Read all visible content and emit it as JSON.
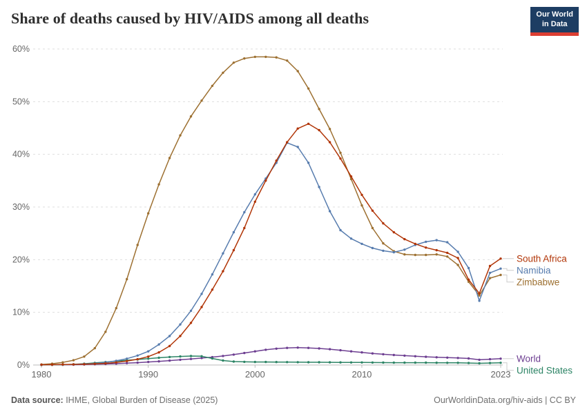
{
  "header": {
    "logo": {
      "line1": "Our World",
      "line2": "in Data",
      "bg_color": "#1d3d63",
      "accent_color": "#dc3e32"
    }
  },
  "footer": {
    "source_label": "Data source:",
    "source_text": " IHME, Global Burden of Disease (2025)",
    "right_text": "OurWorldinData.org/hiv-aids | CC BY"
  },
  "chart_data": {
    "type": "line",
    "title": "Share of deaths caused by HIV/AIDS among all deaths",
    "grid": true,
    "legend_position": "right-of-line-ends",
    "ylim": [
      0,
      60
    ],
    "y_ticks": [
      0,
      10,
      20,
      30,
      40,
      50,
      60
    ],
    "y_tick_labels": [
      "0%",
      "10%",
      "20%",
      "30%",
      "40%",
      "50%",
      "60%"
    ],
    "x_ticks": [
      1980,
      1990,
      2000,
      2010,
      2023
    ],
    "x_tick_labels": [
      "1980",
      "1990",
      "2000",
      "2010",
      "2023"
    ],
    "years": [
      1980,
      1981,
      1982,
      1983,
      1984,
      1985,
      1986,
      1987,
      1988,
      1989,
      1990,
      1991,
      1992,
      1993,
      1994,
      1995,
      1996,
      1997,
      1998,
      1999,
      2000,
      2001,
      2002,
      2003,
      2004,
      2005,
      2006,
      2007,
      2008,
      2009,
      2010,
      2011,
      2012,
      2013,
      2014,
      2015,
      2016,
      2017,
      2018,
      2019,
      2020,
      2021,
      2022,
      2023
    ],
    "series": [
      {
        "name": "South Africa",
        "color": "#B13507",
        "values": [
          0.05,
          0.07,
          0.09,
          0.12,
          0.16,
          0.22,
          0.32,
          0.5,
          0.75,
          1.1,
          1.6,
          2.4,
          3.6,
          5.5,
          8,
          11,
          14.3,
          17.8,
          21.8,
          26,
          31,
          35,
          38.8,
          42.3,
          44.9,
          45.8,
          44.6,
          42.3,
          39.2,
          35.8,
          32.3,
          29.3,
          26.9,
          25.2,
          23.9,
          23,
          22.3,
          21.8,
          21.3,
          20.3,
          16.2,
          13.6,
          18.8,
          20.2
        ]
      },
      {
        "name": "Namibia",
        "color": "#577CAE",
        "values": [
          0.03,
          0.05,
          0.08,
          0.12,
          0.2,
          0.3,
          0.5,
          0.8,
          1.2,
          1.8,
          2.6,
          3.9,
          5.5,
          7.7,
          10.3,
          13.5,
          17.2,
          21.2,
          25.2,
          29,
          32.4,
          35.4,
          38.4,
          42.2,
          41.4,
          38.4,
          33.8,
          29.2,
          25.6,
          24,
          23,
          22.2,
          21.7,
          21.4,
          21.9,
          22.8,
          23.4,
          23.7,
          23.3,
          21.5,
          18.4,
          12.2,
          17.5,
          18.3
        ]
      },
      {
        "name": "Zimbabwe",
        "color": "#9D7031",
        "values": [
          0.1,
          0.25,
          0.5,
          0.9,
          1.6,
          3.2,
          6.3,
          10.8,
          16.3,
          22.8,
          28.8,
          34.3,
          39.3,
          43.6,
          47.2,
          50.2,
          53,
          55.5,
          57.4,
          58.2,
          58.5,
          58.5,
          58.4,
          57.8,
          55.8,
          52.5,
          48.6,
          44.8,
          40.3,
          35.3,
          30.3,
          26,
          23.1,
          21.6,
          21,
          20.9,
          20.9,
          21,
          20.6,
          19,
          15.8,
          13.2,
          16.5,
          17.1
        ]
      },
      {
        "name": "World",
        "color": "#6D3E91",
        "values": [
          0.02,
          0.03,
          0.05,
          0.07,
          0.1,
          0.14,
          0.19,
          0.26,
          0.35,
          0.45,
          0.57,
          0.7,
          0.84,
          1,
          1.15,
          1.32,
          1.5,
          1.72,
          1.98,
          2.28,
          2.6,
          2.9,
          3.1,
          3.25,
          3.3,
          3.25,
          3.15,
          3,
          2.8,
          2.6,
          2.4,
          2.2,
          2.05,
          1.9,
          1.78,
          1.66,
          1.56,
          1.47,
          1.4,
          1.33,
          1.25,
          1,
          1.1,
          1.2
        ]
      },
      {
        "name": "United States",
        "color": "#2C8465",
        "values": [
          0.01,
          0.02,
          0.06,
          0.13,
          0.25,
          0.4,
          0.56,
          0.74,
          0.9,
          1.05,
          1.2,
          1.38,
          1.52,
          1.63,
          1.7,
          1.66,
          1.25,
          0.85,
          0.65,
          0.6,
          0.58,
          0.57,
          0.56,
          0.55,
          0.54,
          0.53,
          0.52,
          0.51,
          0.5,
          0.49,
          0.48,
          0.47,
          0.46,
          0.45,
          0.45,
          0.44,
          0.44,
          0.43,
          0.42,
          0.42,
          0.38,
          0.33,
          0.38,
          0.42
        ]
      }
    ],
    "style": {
      "gridline_color": "#dddddd",
      "axis_line_color": "#bbbbbb",
      "tick_label_color": "#666666",
      "connector_color": "#cccccc"
    }
  }
}
